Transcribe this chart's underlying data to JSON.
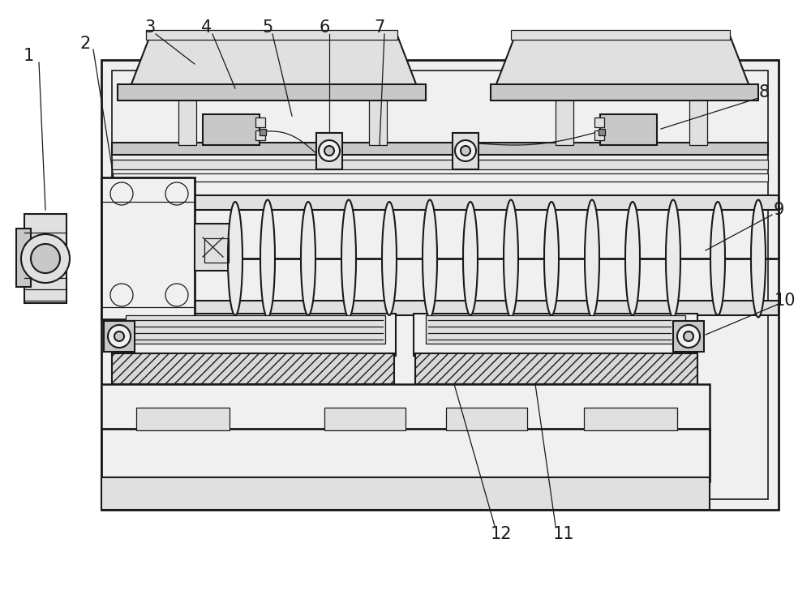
{
  "bg_color": "#ffffff",
  "line_color": "#1a1a1a",
  "label_color": "#1a1a1a",
  "figsize": [
    10.0,
    7.49
  ],
  "dpi": 100,
  "lw_main": 1.5,
  "lw_thin": 0.9,
  "fc_light": "#f0f0f0",
  "fc_mid": "#e0e0e0",
  "fc_dark": "#c8c8c8"
}
